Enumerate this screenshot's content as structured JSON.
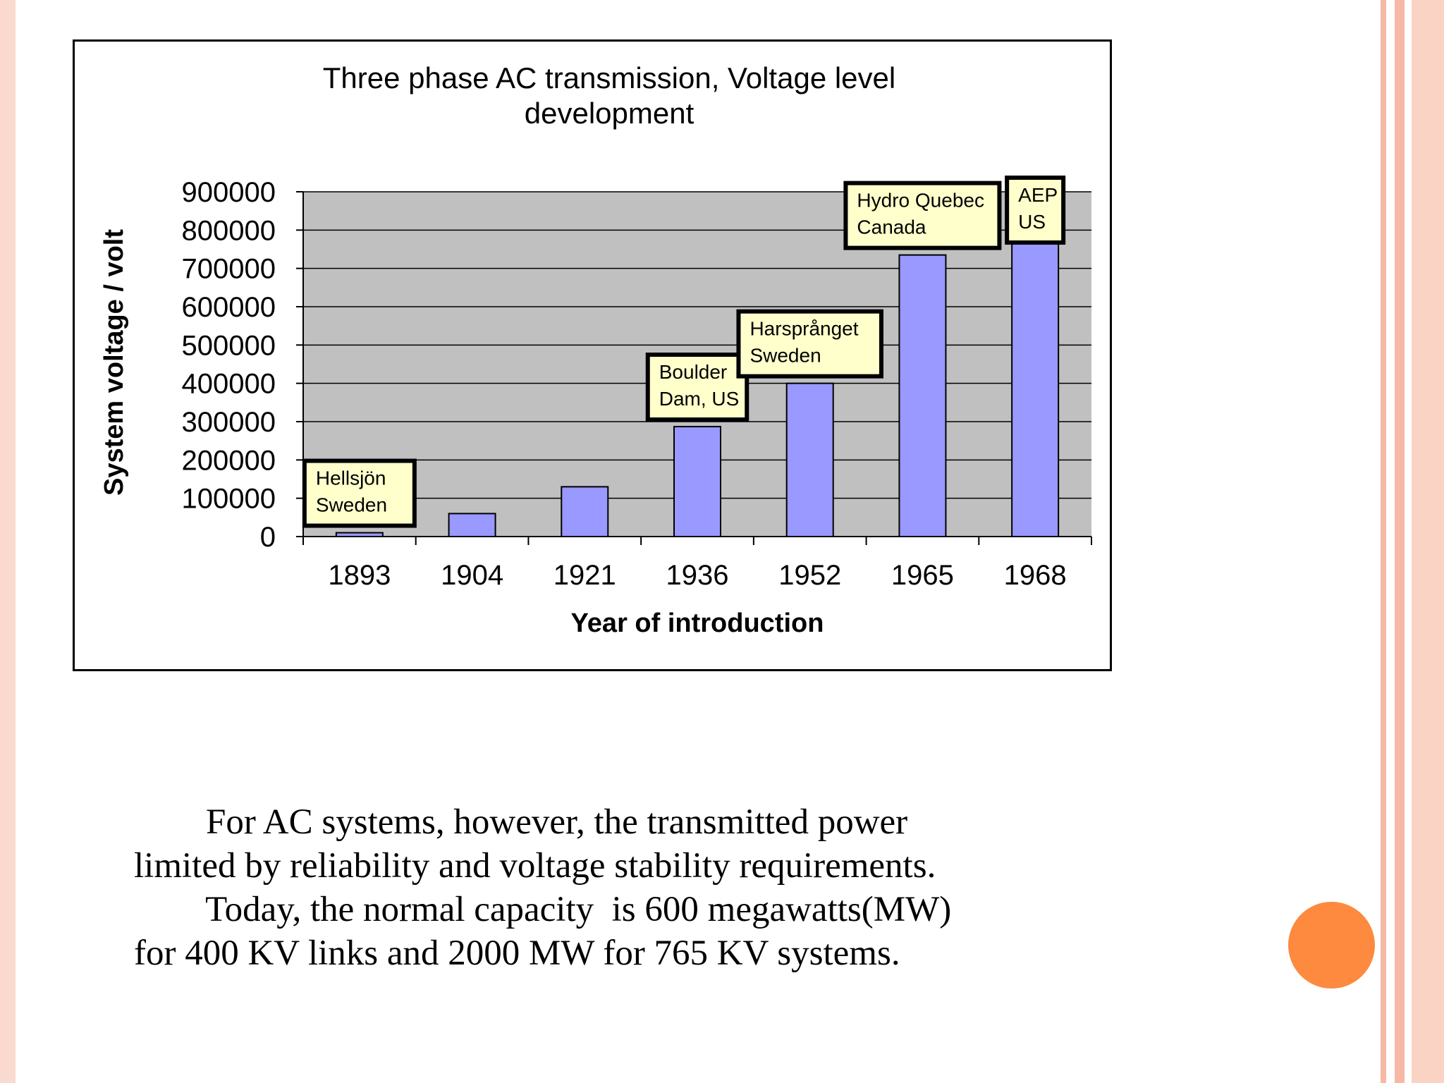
{
  "theme": {
    "stripe_colors": [
      "#fad9cf",
      "#f6b9a5",
      "#fbd3c4"
    ],
    "bullet_color": "#fd8a3e",
    "plot_bg": "#c0c0c0",
    "bar_fill": "#9999ff",
    "callout_fill": "#ffffcc"
  },
  "chart_data": {
    "type": "bar",
    "title_lines": [
      "Three phase AC transmission, Voltage level",
      "development"
    ],
    "xlabel": "Year of introduction",
    "ylabel": "System voltage / volt",
    "categories": [
      "1893",
      "1904",
      "1921",
      "1936",
      "1952",
      "1965",
      "1968"
    ],
    "values": [
      10000,
      60000,
      130000,
      287000,
      400000,
      735000,
      765000
    ],
    "ylim": [
      0,
      900000
    ],
    "yticks": [
      "0",
      "100000",
      "200000",
      "300000",
      "400000",
      "500000",
      "600000",
      "700000",
      "800000",
      "900000"
    ],
    "grid": true,
    "annotations": [
      {
        "category": "1893",
        "lines": [
          "Hellsjön",
          "Sweden"
        ]
      },
      {
        "category": "1936",
        "lines": [
          "Boulder",
          "Dam, US"
        ]
      },
      {
        "category": "1952",
        "lines": [
          "Harsprånget",
          "Sweden"
        ]
      },
      {
        "category": "1965",
        "lines": [
          "Hydro Quebec",
          "Canada"
        ]
      },
      {
        "category": "1968",
        "lines": [
          "AEP",
          "US"
        ]
      }
    ]
  },
  "body_text": {
    "lines": [
      "        For AC systems, however, the transmitted power",
      "limited by reliability and voltage stability requirements.",
      "        Today, the normal capacity  is 600 megawatts(MW)",
      "for 400 KV links and 2000 MW for 765 KV systems."
    ]
  }
}
